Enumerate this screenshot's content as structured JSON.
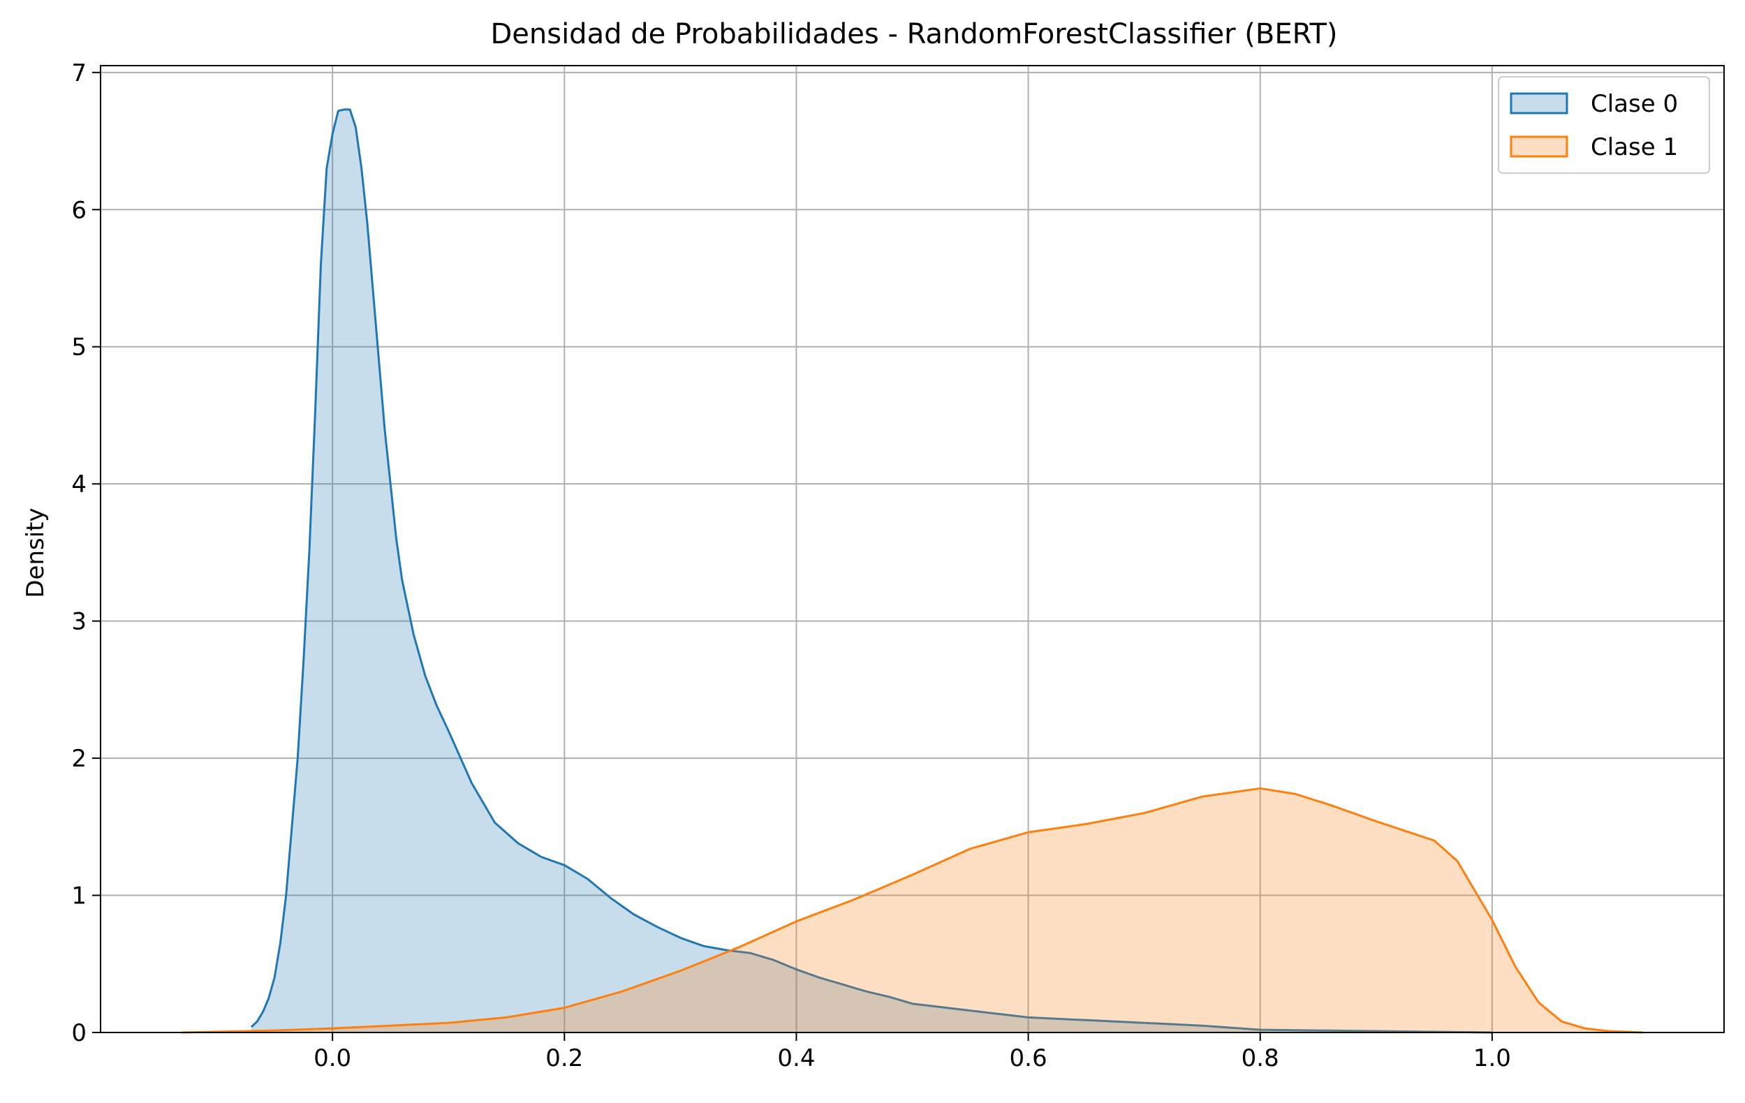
{
  "chart_data": {
    "type": "area",
    "title": "Densidad de Probabilidades - RandomForestClassifier (BERT)",
    "xlabel": "",
    "ylabel": "Density",
    "xlim": [
      -0.2,
      1.2
    ],
    "ylim": [
      0,
      7.05
    ],
    "xticks": [
      0.0,
      0.2,
      0.4,
      0.6,
      0.8,
      1.0
    ],
    "xtick_labels": [
      "0.0",
      "0.2",
      "0.4",
      "0.6",
      "0.8",
      "1.0"
    ],
    "yticks": [
      0,
      1,
      2,
      3,
      4,
      5,
      6,
      7
    ],
    "ytick_labels": [
      "0",
      "1",
      "2",
      "3",
      "4",
      "5",
      "6",
      "7"
    ],
    "grid": true,
    "legend_position": "top-right",
    "series": [
      {
        "name": "Clase 0",
        "color": "#1f77b4",
        "fill": "#1f77b4",
        "fill_opacity": 0.25,
        "x": [
          -0.07,
          -0.065,
          -0.06,
          -0.055,
          -0.05,
          -0.045,
          -0.04,
          -0.035,
          -0.03,
          -0.025,
          -0.02,
          -0.015,
          -0.01,
          -0.005,
          0.0,
          0.005,
          0.01,
          0.015,
          0.02,
          0.025,
          0.03,
          0.035,
          0.04,
          0.045,
          0.05,
          0.055,
          0.06,
          0.07,
          0.08,
          0.09,
          0.1,
          0.12,
          0.14,
          0.16,
          0.18,
          0.2,
          0.22,
          0.24,
          0.26,
          0.28,
          0.3,
          0.32,
          0.34,
          0.36,
          0.38,
          0.4,
          0.42,
          0.44,
          0.46,
          0.48,
          0.5,
          0.55,
          0.6,
          0.65,
          0.7,
          0.75,
          0.8,
          0.85,
          0.9,
          0.95,
          1.0
        ],
        "y": [
          0.04,
          0.08,
          0.15,
          0.25,
          0.4,
          0.65,
          1.0,
          1.5,
          2.0,
          2.7,
          3.5,
          4.5,
          5.6,
          6.3,
          6.55,
          6.72,
          6.73,
          6.73,
          6.6,
          6.3,
          5.9,
          5.4,
          4.9,
          4.4,
          4.0,
          3.6,
          3.3,
          2.9,
          2.6,
          2.38,
          2.2,
          1.82,
          1.53,
          1.38,
          1.28,
          1.22,
          1.12,
          0.98,
          0.86,
          0.77,
          0.69,
          0.63,
          0.6,
          0.58,
          0.53,
          0.46,
          0.4,
          0.35,
          0.3,
          0.26,
          0.21,
          0.16,
          0.11,
          0.09,
          0.07,
          0.05,
          0.02,
          0.015,
          0.01,
          0.005,
          0.0
        ]
      },
      {
        "name": "Clase 1",
        "color": "#ff7f0e",
        "fill": "#ff7f0e",
        "fill_opacity": 0.25,
        "x": [
          -0.13,
          -0.1,
          -0.05,
          0.0,
          0.05,
          0.1,
          0.15,
          0.2,
          0.25,
          0.3,
          0.35,
          0.4,
          0.45,
          0.5,
          0.55,
          0.6,
          0.65,
          0.7,
          0.75,
          0.8,
          0.83,
          0.86,
          0.9,
          0.95,
          0.97,
          1.0,
          1.02,
          1.04,
          1.06,
          1.08,
          1.1,
          1.13
        ],
        "y": [
          0.0,
          0.005,
          0.015,
          0.03,
          0.05,
          0.07,
          0.11,
          0.18,
          0.3,
          0.45,
          0.62,
          0.81,
          0.97,
          1.15,
          1.34,
          1.46,
          1.52,
          1.6,
          1.72,
          1.78,
          1.74,
          1.66,
          1.54,
          1.4,
          1.25,
          0.82,
          0.48,
          0.22,
          0.08,
          0.03,
          0.01,
          0.0
        ]
      }
    ]
  }
}
